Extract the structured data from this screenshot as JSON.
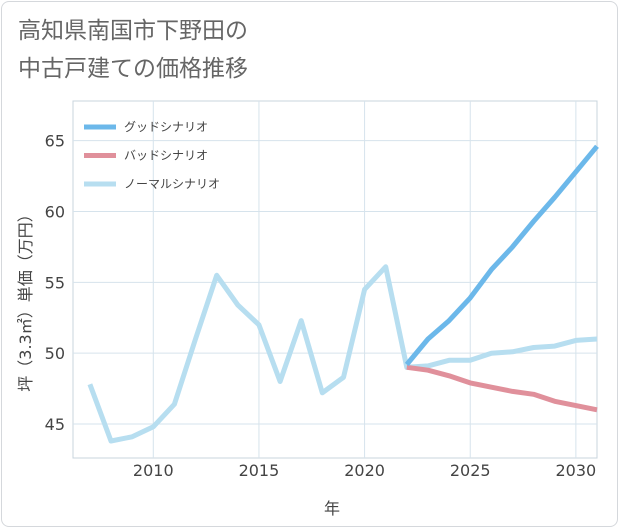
{
  "chart_data": {
    "type": "line",
    "title_lines": [
      "高知県南国市下野田の",
      "中古戸建ての価格推移"
    ],
    "xlabel": "年",
    "ylabel": "坪（3.3㎡）単価（万円）",
    "xlim": [
      2006.2,
      2031
    ],
    "ylim": [
      42.6,
      67.8
    ],
    "x_ticks": [
      2010,
      2015,
      2020,
      2025,
      2030
    ],
    "y_ticks": [
      45,
      50,
      55,
      60,
      65
    ],
    "series": [
      {
        "name": "グッドシナリオ",
        "color": "#6cb8ea",
        "x": [
          2022,
          2023,
          2024,
          2025,
          2026,
          2027,
          2028,
          2029,
          2030,
          2031
        ],
        "values": [
          49.2,
          51.0,
          52.3,
          53.9,
          55.9,
          57.5,
          59.3,
          61.0,
          62.8,
          64.6
        ]
      },
      {
        "name": "バッドシナリオ",
        "color": "#e0909b",
        "x": [
          2022,
          2023,
          2024,
          2025,
          2026,
          2027,
          2028,
          2029,
          2030,
          2031
        ],
        "values": [
          49.0,
          48.8,
          48.4,
          47.9,
          47.6,
          47.3,
          47.1,
          46.6,
          46.3,
          46.0
        ]
      },
      {
        "name": "ノーマルシナリオ",
        "color": "#b7def0",
        "x": [
          2007,
          2008,
          2009,
          2010,
          2011,
          2012,
          2013,
          2014,
          2015,
          2016,
          2017,
          2018,
          2019,
          2020,
          2021,
          2022,
          2023,
          2024,
          2025,
          2026,
          2027,
          2028,
          2029,
          2030,
          2031
        ],
        "values": [
          47.8,
          43.8,
          44.1,
          44.8,
          46.4,
          51.0,
          55.5,
          53.4,
          52.0,
          48.0,
          52.3,
          47.2,
          48.3,
          54.5,
          56.1,
          49.0,
          49.1,
          49.5,
          49.5,
          50.0,
          50.1,
          50.4,
          50.5,
          50.9,
          51.0
        ]
      }
    ],
    "legend_position": "top-left"
  }
}
